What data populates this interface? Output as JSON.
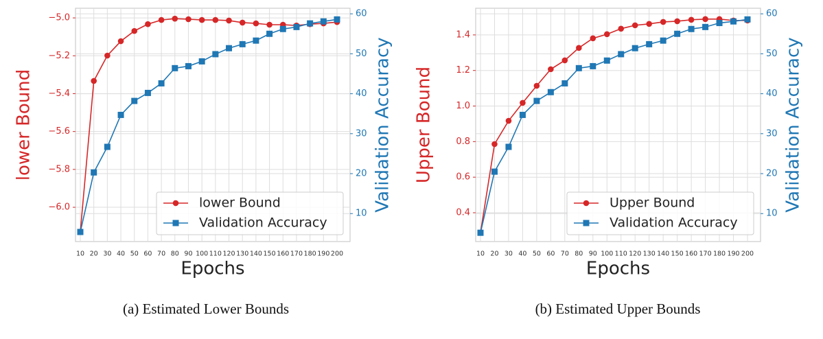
{
  "chart_data": [
    {
      "type": "line",
      "caption": "(a) Estimated Lower Bounds",
      "xlabel": "Epochs",
      "ylabel": "lower Bound",
      "y2label": "Validation Accuracy",
      "categories": [
        "10",
        "20",
        "30",
        "40",
        "50",
        "60",
        "70",
        "80",
        "90",
        "100",
        "110",
        "120",
        "130",
        "140",
        "150",
        "160",
        "170",
        "180",
        "190",
        "200"
      ],
      "series": [
        {
          "name": "lower Bound",
          "color": "#d62728",
          "marker": "circle",
          "axis": "y",
          "values": [
            -6.13,
            -5.333,
            -5.199,
            -5.123,
            -5.069,
            -5.033,
            -5.011,
            -5.004,
            -5.007,
            -5.011,
            -5.011,
            -5.014,
            -5.025,
            -5.029,
            -5.036,
            -5.036,
            -5.04,
            -5.033,
            -5.029,
            -5.022
          ]
        },
        {
          "name": "Validation Accuracy",
          "color": "#1f77b4",
          "marker": "square",
          "axis": "y2",
          "values": [
            5.4,
            20.3,
            26.7,
            34.7,
            38.2,
            40.2,
            42.6,
            46.4,
            46.9,
            48.1,
            49.9,
            51.4,
            52.4,
            53.3,
            55.0,
            56.2,
            56.7,
            57.6,
            58.1,
            58.6
          ]
        }
      ],
      "ylim": [
        -6.181,
        -4.949
      ],
      "yticks": [
        {
          "value": -6.0,
          "label": "−6.0"
        },
        {
          "value": -5.8,
          "label": "−5.8"
        },
        {
          "value": -5.6,
          "label": "−5.6"
        },
        {
          "value": -5.4,
          "label": "−5.4"
        },
        {
          "value": -5.2,
          "label": "−5.2"
        },
        {
          "value": -5.0,
          "label": "−5.0"
        }
      ],
      "y2lim": [
        3.0,
        61.4
      ],
      "y2ticks": [
        10,
        20,
        30,
        40,
        50,
        60
      ],
      "grid": true,
      "legend": "lower right"
    },
    {
      "type": "line",
      "caption": "(b) Estimated Upper Bounds",
      "xlabel": "Epochs",
      "ylabel": "Upper Bound",
      "y2label": "Validation Accuracy",
      "categories": [
        "10",
        "20",
        "30",
        "40",
        "50",
        "60",
        "70",
        "80",
        "90",
        "100",
        "110",
        "120",
        "130",
        "140",
        "150",
        "160",
        "170",
        "180",
        "190",
        "200"
      ],
      "series": [
        {
          "name": "Upper Bound",
          "color": "#d62728",
          "marker": "circle",
          "axis": "y",
          "values": [
            0.288,
            0.786,
            0.917,
            1.018,
            1.114,
            1.207,
            1.257,
            1.327,
            1.381,
            1.404,
            1.435,
            1.454,
            1.462,
            1.473,
            1.477,
            1.485,
            1.489,
            1.489,
            1.481,
            1.481
          ]
        },
        {
          "name": "Validation Accuracy",
          "color": "#1f77b4",
          "marker": "square",
          "axis": "y2",
          "values": [
            5.2,
            20.5,
            26.7,
            34.7,
            38.2,
            40.4,
            42.6,
            46.4,
            46.9,
            48.3,
            49.9,
            51.4,
            52.4,
            53.3,
            55.0,
            56.2,
            56.7,
            57.7,
            58.1,
            58.6
          ]
        }
      ],
      "ylim": [
        0.238,
        1.55
      ],
      "yticks": [
        0.4,
        0.6,
        0.8,
        {
          "value": 1.0,
          "label": "1.0"
        },
        1.2,
        1.4
      ],
      "y2lim": [
        3.0,
        61.4
      ],
      "y2ticks": [
        10,
        20,
        30,
        40,
        50,
        60
      ],
      "grid": true,
      "legend": "lower right"
    }
  ]
}
